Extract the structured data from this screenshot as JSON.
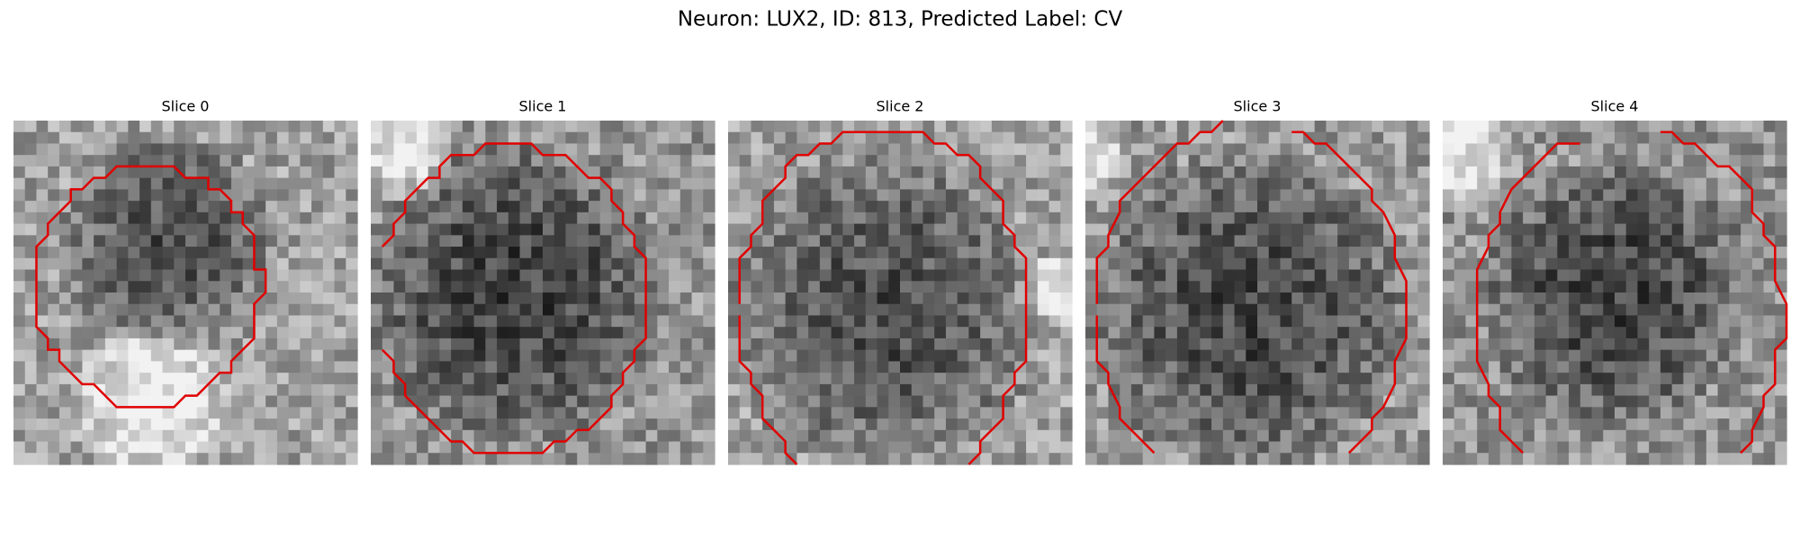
{
  "title": "Neuron: LUX2, ID: 813, Predicted Label: CV",
  "panels": [
    {
      "title": "Slice 0"
    },
    {
      "title": "Slice 1"
    },
    {
      "title": "Slice 2"
    },
    {
      "title": "Slice 3"
    },
    {
      "title": "Slice 4"
    }
  ]
}
